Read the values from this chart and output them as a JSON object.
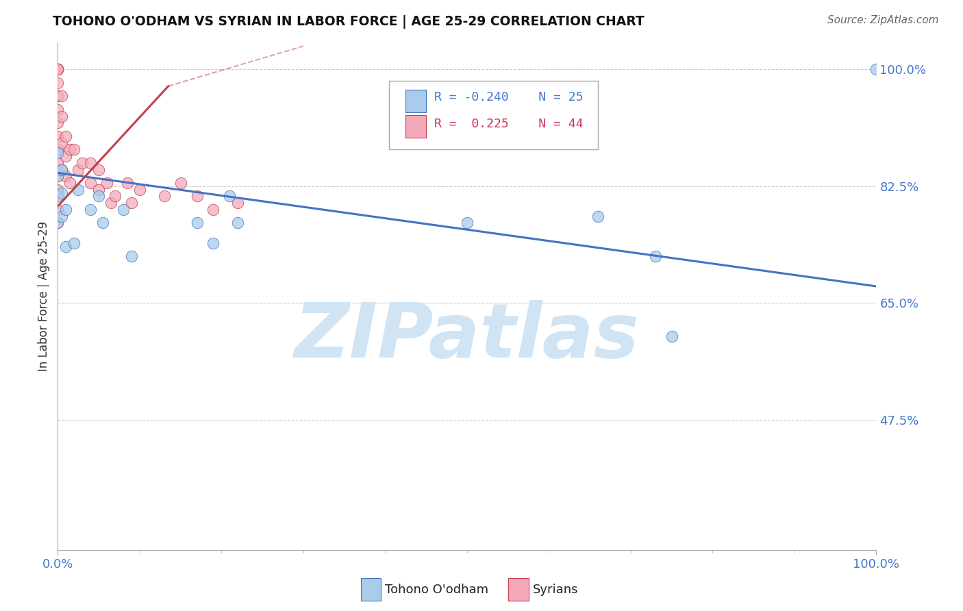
{
  "title": "TOHONO O'ODHAM VS SYRIAN IN LABOR FORCE | AGE 25-29 CORRELATION CHART",
  "source": "Source: ZipAtlas.com",
  "ylabel": "In Labor Force | Age 25-29",
  "y_tick_labels": [
    "100.0%",
    "82.5%",
    "65.0%",
    "47.5%"
  ],
  "y_tick_values": [
    1.0,
    0.825,
    0.65,
    0.475
  ],
  "x_range": [
    0.0,
    1.0
  ],
  "y_range": [
    0.28,
    1.04
  ],
  "blue_label": "Tohono O'odham",
  "pink_label": "Syrians",
  "blue_R": -0.24,
  "blue_N": 25,
  "pink_R": 0.225,
  "pink_N": 44,
  "blue_color": "#A8CCEA",
  "pink_color": "#F4AABB",
  "blue_line_color": "#4472C4",
  "pink_line_color": "#C0404A",
  "watermark_color": "#D0E4F4",
  "background_color": "#FFFFFF",
  "grid_color": "#CCCCCC",
  "blue_line_start_y": 0.845,
  "blue_line_end_y": 0.675,
  "pink_line_solid_x0": 0.0,
  "pink_line_solid_x1": 0.135,
  "pink_line_solid_y0": 0.795,
  "pink_line_solid_y1": 0.975,
  "pink_line_dash_x1": 0.3,
  "pink_line_dash_y1": 1.035,
  "blue_points_x": [
    0.0,
    0.0,
    0.0,
    0.0,
    0.005,
    0.005,
    0.005,
    0.01,
    0.01,
    0.02,
    0.025,
    0.04,
    0.05,
    0.055,
    0.08,
    0.09,
    0.17,
    0.19,
    0.21,
    0.22,
    0.5,
    0.66,
    0.73,
    1.0,
    0.75
  ],
  "blue_points_y": [
    0.875,
    0.84,
    0.81,
    0.77,
    0.85,
    0.815,
    0.78,
    0.79,
    0.735,
    0.74,
    0.82,
    0.79,
    0.81,
    0.77,
    0.79,
    0.72,
    0.77,
    0.74,
    0.81,
    0.77,
    0.77,
    0.78,
    0.72,
    1.0,
    0.6
  ],
  "pink_points_x": [
    0.0,
    0.0,
    0.0,
    0.0,
    0.0,
    0.0,
    0.0,
    0.0,
    0.0,
    0.0,
    0.0,
    0.0,
    0.0,
    0.0,
    0.0,
    0.0,
    0.0,
    0.005,
    0.005,
    0.005,
    0.005,
    0.01,
    0.01,
    0.01,
    0.015,
    0.015,
    0.02,
    0.025,
    0.03,
    0.04,
    0.04,
    0.05,
    0.05,
    0.06,
    0.065,
    0.07,
    0.085,
    0.09,
    0.1,
    0.13,
    0.15,
    0.17,
    0.19,
    0.22
  ],
  "pink_points_y": [
    1.0,
    1.0,
    1.0,
    1.0,
    1.0,
    1.0,
    0.98,
    0.96,
    0.94,
    0.92,
    0.9,
    0.88,
    0.86,
    0.84,
    0.82,
    0.79,
    0.77,
    0.96,
    0.93,
    0.89,
    0.85,
    0.9,
    0.87,
    0.84,
    0.88,
    0.83,
    0.88,
    0.85,
    0.86,
    0.86,
    0.83,
    0.85,
    0.82,
    0.83,
    0.8,
    0.81,
    0.83,
    0.8,
    0.82,
    0.81,
    0.83,
    0.81,
    0.79,
    0.8
  ]
}
